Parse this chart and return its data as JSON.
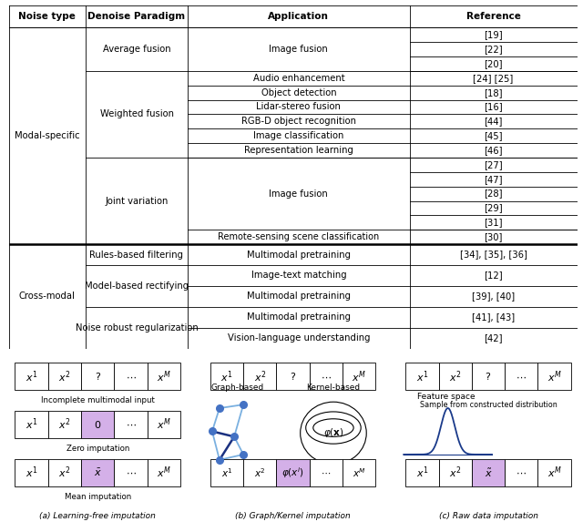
{
  "headers": [
    "Noise type",
    "Denoise Paradigm",
    "Application",
    "Reference"
  ],
  "cell_highlight_color": "#d4b0e8",
  "graph_node_color": "#4472c4",
  "graph_edge_color_light": "#7ab0e0",
  "graph_edge_color_dark": "#1a3080",
  "gaussian_color": "#1a3a8a",
  "table_border_color": "#000000",
  "text_color": "#000000",
  "wf_apps": [
    "Audio enhancement",
    "Object detection",
    "Lidar-stereo fusion",
    "RGB-D object recognition",
    "Image classification",
    "Representation learning"
  ],
  "wf_refs": [
    "[24] [25]",
    "[18]",
    "[16]",
    "[44]",
    "[45]",
    "[46]"
  ],
  "jv_refs": [
    "[27]",
    "[47]",
    "[28]",
    "[29]",
    "[31]"
  ],
  "avg_refs": [
    "[19]",
    "[22]",
    "[20]"
  ]
}
